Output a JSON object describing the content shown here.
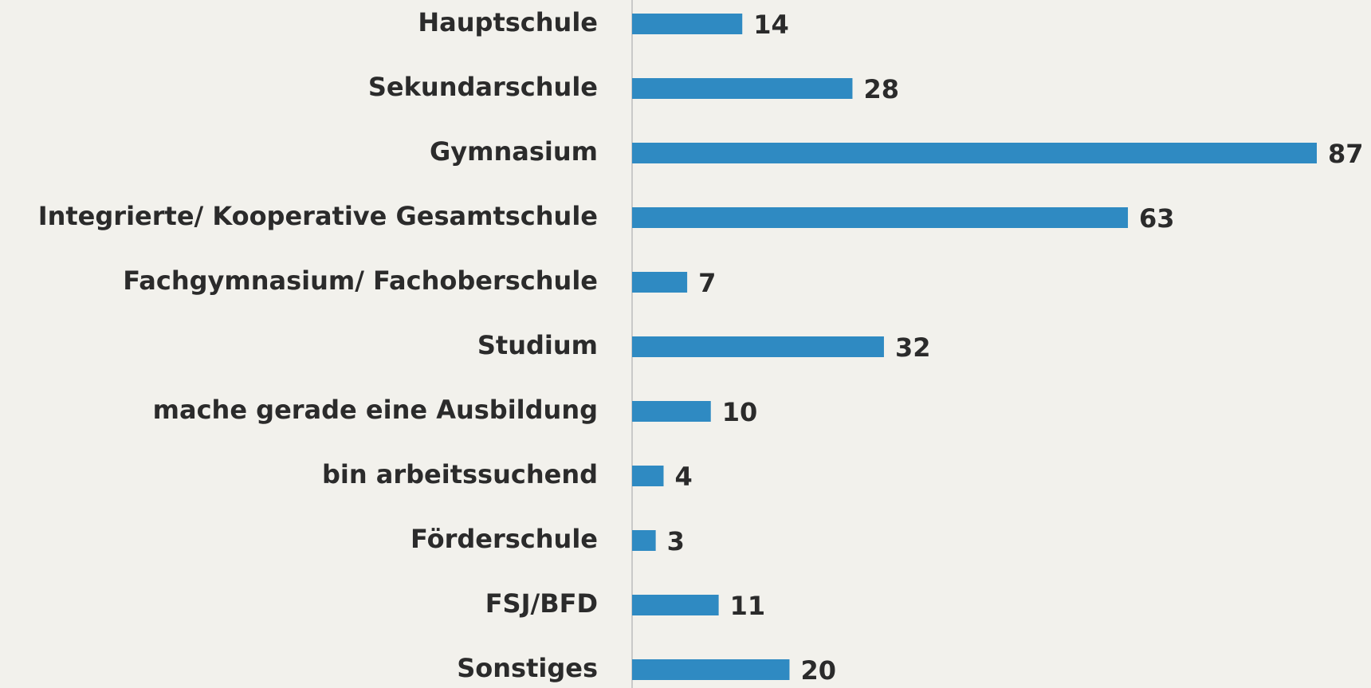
{
  "chart_data": {
    "type": "bar",
    "orientation": "horizontal",
    "categories": [
      "Hauptschule",
      "Sekundarschule",
      "Gymnasium",
      "Integrierte/ Kooperative Gesamtschule",
      "Fachgymnasium/ Fachoberschule",
      "Studium",
      "mache gerade eine Ausbildung",
      "bin arbeitssuchend",
      "Förderschule",
      "FSJ/BFD",
      "Sonstiges"
    ],
    "values": [
      14,
      28,
      87,
      63,
      7,
      32,
      10,
      4,
      3,
      11,
      20
    ],
    "color": "#2f8ac2"
  }
}
